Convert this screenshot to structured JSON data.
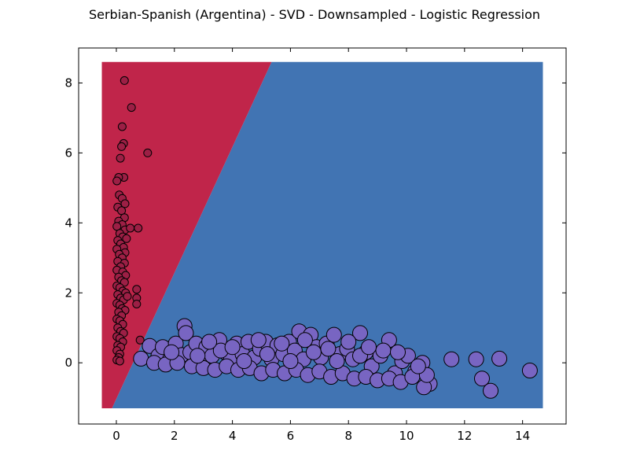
{
  "chart_data": {
    "type": "scatter",
    "title": "Serbian-Spanish (Argentina) - SVD - Downsampled - Logistic Regression",
    "xlabel": "",
    "ylabel": "",
    "xlim": [
      -1.3,
      15.5
    ],
    "ylim": [
      -1.75,
      9.0
    ],
    "xticks": [
      0,
      2,
      4,
      6,
      8,
      10,
      12,
      14
    ],
    "yticks": [
      0,
      2,
      4,
      6,
      8
    ],
    "grid": false,
    "decision_regions": {
      "extent_x": [
        -0.5,
        14.7
      ],
      "extent_y": [
        -1.3,
        8.6
      ],
      "boundary": [
        [
          -0.15,
          -1.3
        ],
        [
          5.35,
          8.6
        ]
      ],
      "left_class_color": "#c0254a",
      "right_class_color": "#4174b3"
    },
    "series": [
      {
        "color": "#9c1f45",
        "points": [
          [
            0.28,
            8.07
          ],
          [
            0.52,
            7.3
          ],
          [
            0.2,
            6.75
          ],
          [
            0.25,
            6.27
          ],
          [
            0.18,
            6.18
          ],
          [
            1.08,
            6.0
          ],
          [
            0.14,
            5.85
          ],
          [
            0.26,
            5.3
          ],
          [
            0.08,
            5.3
          ],
          [
            0.02,
            5.2
          ],
          [
            0.1,
            4.8
          ],
          [
            0.2,
            4.7
          ],
          [
            0.3,
            4.55
          ],
          [
            0.05,
            4.45
          ],
          [
            0.18,
            4.35
          ],
          [
            0.28,
            4.15
          ],
          [
            0.08,
            4.05
          ],
          [
            0.2,
            3.95
          ],
          [
            0.02,
            3.9
          ],
          [
            0.3,
            3.8
          ],
          [
            0.48,
            3.85
          ],
          [
            0.75,
            3.85
          ],
          [
            0.12,
            3.7
          ],
          [
            0.22,
            3.6
          ],
          [
            0.05,
            3.5
          ],
          [
            0.35,
            3.55
          ],
          [
            0.15,
            3.4
          ],
          [
            0.25,
            3.3
          ],
          [
            0.02,
            3.25
          ],
          [
            0.3,
            3.15
          ],
          [
            0.1,
            3.1
          ],
          [
            0.2,
            3.0
          ],
          [
            0.05,
            2.9
          ],
          [
            0.28,
            2.85
          ],
          [
            0.15,
            2.75
          ],
          [
            0.02,
            2.65
          ],
          [
            0.22,
            2.6
          ],
          [
            0.32,
            2.5
          ],
          [
            0.08,
            2.45
          ],
          [
            0.18,
            2.35
          ],
          [
            0.28,
            2.3
          ],
          [
            0.02,
            2.2
          ],
          [
            0.12,
            2.15
          ],
          [
            0.22,
            2.05
          ],
          [
            0.32,
            2.0
          ],
          [
            0.05,
            1.95
          ],
          [
            0.15,
            1.85
          ],
          [
            0.25,
            1.8
          ],
          [
            0.38,
            1.9
          ],
          [
            0.02,
            1.7
          ],
          [
            0.12,
            1.65
          ],
          [
            0.7,
            2.1
          ],
          [
            0.7,
            1.85
          ],
          [
            0.7,
            1.68
          ],
          [
            0.2,
            1.55
          ],
          [
            0.3,
            1.5
          ],
          [
            0.08,
            1.45
          ],
          [
            0.18,
            1.35
          ],
          [
            0.02,
            1.25
          ],
          [
            0.12,
            1.2
          ],
          [
            0.22,
            1.1
          ],
          [
            0.05,
            1.0
          ],
          [
            0.15,
            0.9
          ],
          [
            0.25,
            0.85
          ],
          [
            0.02,
            0.75
          ],
          [
            0.12,
            0.7
          ],
          [
            0.22,
            0.6
          ],
          [
            0.05,
            0.5
          ],
          [
            0.15,
            0.45
          ],
          [
            0.02,
            0.35
          ],
          [
            0.12,
            0.25
          ],
          [
            0.08,
            0.15
          ],
          [
            0.02,
            0.08
          ],
          [
            0.12,
            0.05
          ],
          [
            0.82,
            0.65
          ]
        ]
      },
      {
        "color": "#7865c2",
        "points": [
          [
            0.85,
            0.12
          ],
          [
            1.15,
            0.48
          ],
          [
            1.45,
            0.2
          ],
          [
            1.6,
            0.45
          ],
          [
            1.85,
            0.1
          ],
          [
            2.05,
            0.55
          ],
          [
            2.25,
            0.22
          ],
          [
            2.35,
            1.05
          ],
          [
            2.4,
            0.85
          ],
          [
            2.55,
            0.3
          ],
          [
            2.75,
            0.55
          ],
          [
            2.9,
            0.1
          ],
          [
            3.1,
            0.45
          ],
          [
            3.3,
            0.2
          ],
          [
            3.55,
            0.65
          ],
          [
            3.75,
            0.3
          ],
          [
            3.95,
            0.1
          ],
          [
            4.15,
            0.55
          ],
          [
            4.35,
            0.25
          ],
          [
            4.55,
            0.6
          ],
          [
            4.75,
            0.15
          ],
          [
            4.95,
            0.4
          ],
          [
            5.15,
            0.6
          ],
          [
            5.35,
            0.1
          ],
          [
            5.55,
            0.5
          ],
          [
            5.75,
            0.25
          ],
          [
            5.95,
            0.6
          ],
          [
            6.15,
            0.35
          ],
          [
            6.3,
            0.9
          ],
          [
            6.45,
            0.1
          ],
          [
            6.7,
            0.8
          ],
          [
            6.9,
            0.45
          ],
          [
            7.05,
            0.15
          ],
          [
            7.25,
            0.55
          ],
          [
            7.5,
            0.8
          ],
          [
            7.7,
            0.25
          ],
          [
            7.95,
            0.4
          ],
          [
            8.15,
            0.1
          ],
          [
            8.4,
            0.85
          ],
          [
            8.6,
            0.3
          ],
          [
            8.8,
            -0.1
          ],
          [
            9.1,
            0.2
          ],
          [
            9.4,
            0.65
          ],
          [
            9.6,
            -0.3
          ],
          [
            9.85,
            0.05
          ],
          [
            10.05,
            0.2
          ],
          [
            10.3,
            -0.25
          ],
          [
            10.55,
            0.0
          ],
          [
            10.8,
            -0.6
          ],
          [
            10.6,
            -0.7
          ],
          [
            11.55,
            0.1
          ],
          [
            12.4,
            0.1
          ],
          [
            12.6,
            -0.45
          ],
          [
            12.9,
            -0.8
          ],
          [
            13.2,
            0.12
          ],
          [
            14.25,
            -0.22
          ],
          [
            1.3,
            0.0
          ],
          [
            1.7,
            -0.05
          ],
          [
            2.1,
            0.0
          ],
          [
            2.6,
            -0.1
          ],
          [
            3.0,
            -0.15
          ],
          [
            3.4,
            -0.2
          ],
          [
            3.8,
            -0.1
          ],
          [
            4.2,
            -0.2
          ],
          [
            4.6,
            -0.15
          ],
          [
            5.0,
            -0.3
          ],
          [
            5.4,
            -0.2
          ],
          [
            5.8,
            -0.3
          ],
          [
            6.2,
            -0.2
          ],
          [
            6.6,
            -0.35
          ],
          [
            7.0,
            -0.25
          ],
          [
            7.4,
            -0.4
          ],
          [
            7.8,
            -0.3
          ],
          [
            8.2,
            -0.45
          ],
          [
            8.6,
            -0.4
          ],
          [
            9.0,
            -0.5
          ],
          [
            9.4,
            -0.45
          ],
          [
            9.8,
            -0.55
          ],
          [
            10.2,
            -0.4
          ],
          [
            10.7,
            -0.35
          ],
          [
            1.9,
            0.3
          ],
          [
            2.8,
            0.2
          ],
          [
            3.6,
            0.35
          ],
          [
            4.4,
            0.05
          ],
          [
            5.2,
            0.25
          ],
          [
            6.0,
            0.05
          ],
          [
            6.8,
            0.3
          ],
          [
            7.6,
            0.05
          ],
          [
            8.4,
            0.2
          ],
          [
            9.2,
            0.35
          ],
          [
            3.2,
            0.6
          ],
          [
            4.0,
            0.45
          ],
          [
            4.9,
            0.65
          ],
          [
            5.7,
            0.55
          ],
          [
            6.5,
            0.65
          ],
          [
            7.3,
            0.4
          ],
          [
            8.0,
            0.6
          ],
          [
            8.7,
            0.45
          ],
          [
            9.7,
            0.3
          ],
          [
            10.4,
            -0.1
          ]
        ]
      }
    ]
  }
}
